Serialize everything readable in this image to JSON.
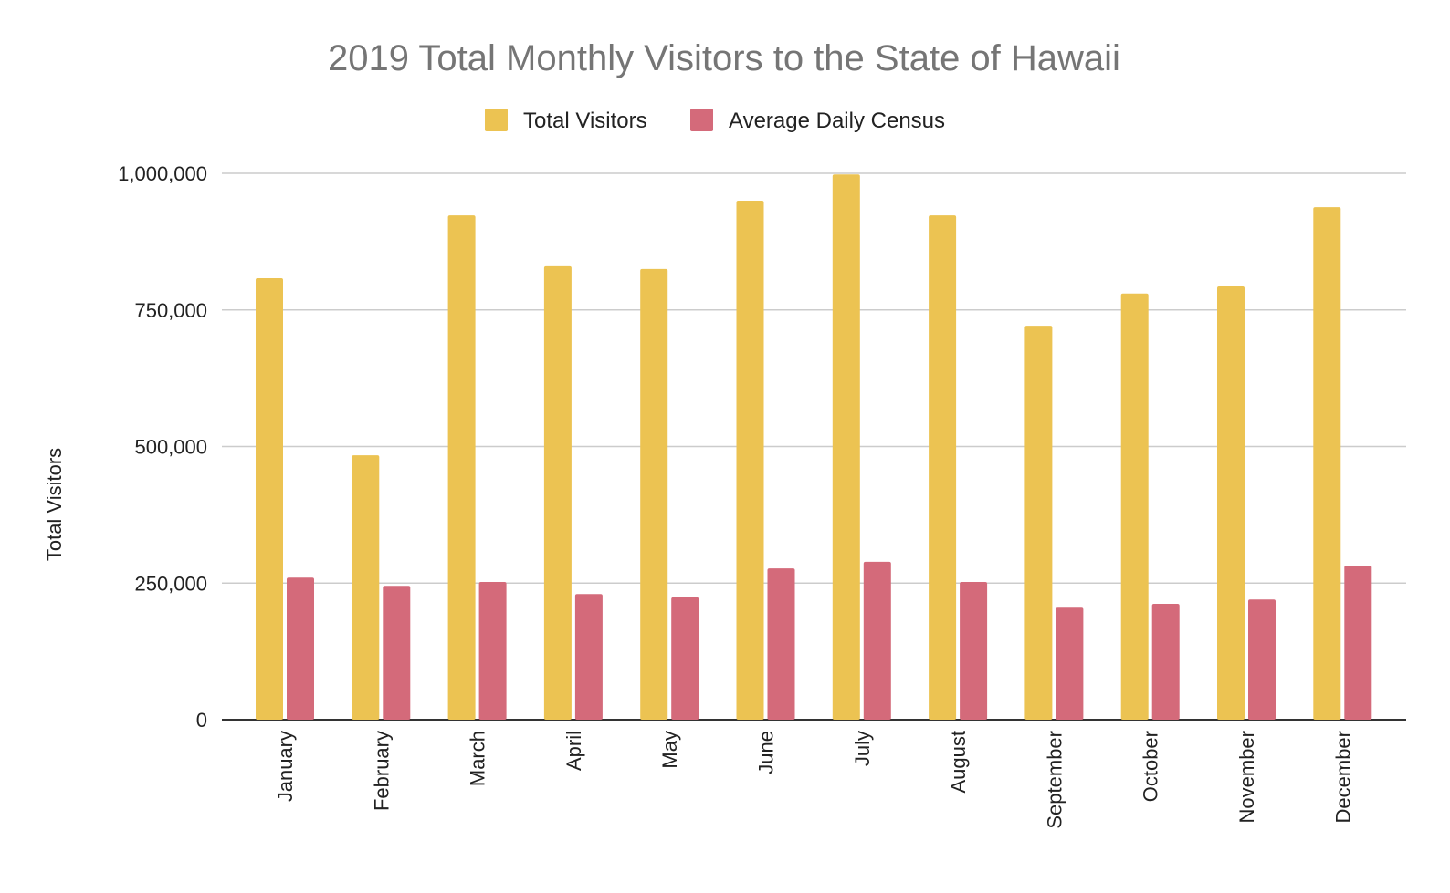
{
  "chart_data": {
    "type": "bar",
    "title": "2019 Total Monthly Visitors to the State of Hawaii",
    "xlabel": "",
    "ylabel": "Total Visitors",
    "ylim": [
      0,
      1000000
    ],
    "yticks": [
      0,
      250000,
      500000,
      750000,
      1000000
    ],
    "ytick_labels": [
      "0",
      "250,000",
      "500,000",
      "750,000",
      "1,000,000"
    ],
    "grid": true,
    "legend_position": "top",
    "categories": [
      "January",
      "February",
      "March",
      "April",
      "May",
      "June",
      "July",
      "August",
      "September",
      "October",
      "November",
      "December"
    ],
    "series": [
      {
        "name": "Total Visitors",
        "color": "#ECC352",
        "values": [
          808000,
          484000,
          923000,
          830000,
          825000,
          950000,
          998000,
          923000,
          721000,
          780000,
          793000,
          938000
        ]
      },
      {
        "name": "Average Daily Census",
        "color": "#D46A7A",
        "values": [
          260000,
          245000,
          252000,
          230000,
          224000,
          277000,
          289000,
          252000,
          205000,
          212000,
          220000,
          282000
        ]
      }
    ]
  }
}
